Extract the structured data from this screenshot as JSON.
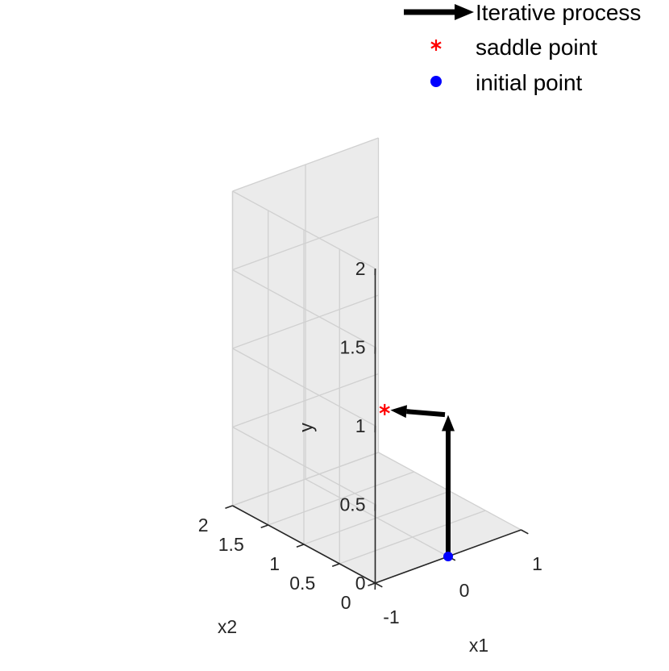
{
  "chart_data": {
    "type": "line3d",
    "axes": {
      "xlabel": "x1",
      "ylabel": "x2",
      "zlabel": "y",
      "xlim": [
        -1,
        1
      ],
      "ylim": [
        0,
        2
      ],
      "zlim": [
        0,
        2
      ],
      "xticks": [
        "-1",
        "0",
        "1"
      ],
      "yticks": [
        "0",
        "0.5",
        "1",
        "1.5",
        "2"
      ],
      "zticks": [
        "0",
        "0.5",
        "1",
        "1.5",
        "2"
      ],
      "grid": true
    },
    "series": [
      {
        "name": "Iterative process",
        "kind": "arrows",
        "color": "#000000",
        "segments": [
          {
            "from": [
              0,
              0,
              0
            ],
            "to": [
              0,
              0,
              0.9
            ]
          },
          {
            "from": [
              0,
              0,
              0.9
            ],
            "to": [
              -0.4,
              0.4,
              0.9
            ]
          }
        ]
      },
      {
        "name": "saddle point",
        "kind": "marker",
        "marker": "asterisk",
        "color": "#ff0000",
        "points": [
          [
            -0.44,
            0.44,
            0.9
          ]
        ]
      },
      {
        "name": "initial point",
        "kind": "marker",
        "marker": "circle",
        "color": "#0000ff",
        "points": [
          [
            0,
            0,
            0
          ]
        ]
      }
    ],
    "legend": {
      "position": "top-right",
      "entries": [
        "Iterative process",
        "saddle point",
        "initial point"
      ]
    },
    "colors": {
      "pane": "#ebebeb",
      "grid": "#d0d0d0",
      "axis": "#262626"
    }
  }
}
